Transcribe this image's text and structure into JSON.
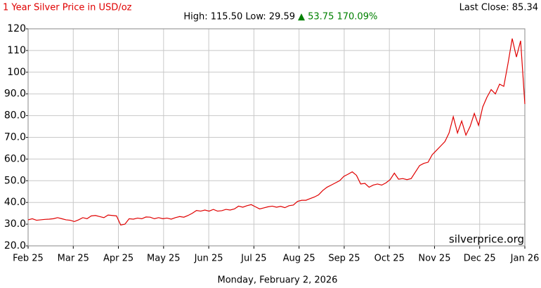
{
  "chart_data": {
    "type": "line",
    "title": "1 Year Silver Price in USD/oz",
    "last_close": "Last Close: 85.34",
    "stats": "High: 115.50 Low: 29.59",
    "change": "▲ 53.75 170.09%",
    "watermark": "silverprice.org",
    "footer": "Monday, February 2, 2026",
    "color": "#e00000",
    "grid": true,
    "xtick_labels": [
      "Feb 25",
      "Mar 25",
      "Apr 25",
      "May 25",
      "Jun 25",
      "Jul 25",
      "Aug 25",
      "Sep 25",
      "Oct 25",
      "Nov 25",
      "Dec 25",
      "Jan 26"
    ],
    "values": [
      32,
      32.5,
      31.8,
      32,
      32.2,
      32.3,
      32.5,
      33,
      32.5,
      32,
      31.8,
      31.2,
      32,
      33,
      32.5,
      33.8,
      34,
      33.5,
      33,
      34.2,
      34,
      33.8,
      29.59,
      30,
      32.5,
      32.3,
      32.8,
      32.5,
      33.3,
      33.2,
      32.5,
      33,
      32.5,
      32.8,
      32.3,
      33,
      33.5,
      33.2,
      34,
      35,
      36.3,
      36,
      36.5,
      36,
      36.8,
      36,
      36.2,
      36.8,
      36.5,
      37,
      38.3,
      37.8,
      38.5,
      39,
      38,
      37,
      37.5,
      38,
      38.3,
      37.8,
      38.2,
      37.6,
      38.5,
      38.8,
      40.5,
      41,
      41,
      41.8,
      42.5,
      43.5,
      45.5,
      47,
      48,
      49,
      50,
      52,
      53,
      54.1,
      52.5,
      48.5,
      48.8,
      47,
      48,
      48.5,
      48,
      49,
      50.5,
      53.5,
      50.7,
      51,
      50.5,
      51,
      54,
      57,
      58,
      58.5,
      62,
      64,
      66,
      68,
      72,
      79.5,
      72,
      77.5,
      71,
      75,
      81,
      75.5,
      84,
      88.5,
      92,
      90,
      94.5,
      93.5,
      104,
      115.5,
      107,
      114.5,
      85.34
    ],
    "ylim": [
      20,
      120
    ],
    "yticks": [
      {
        "value": 20,
        "label": "20.0"
      },
      {
        "value": 30,
        "label": "30.0"
      },
      {
        "value": 40,
        "label": "40.0"
      },
      {
        "value": 50,
        "label": "50.0"
      },
      {
        "value": 60,
        "label": "60.0"
      },
      {
        "value": 70,
        "label": "70.0"
      },
      {
        "value": 80,
        "label": "80.0"
      },
      {
        "value": 90,
        "label": "90.0"
      },
      100,
      110,
      120
    ]
  }
}
